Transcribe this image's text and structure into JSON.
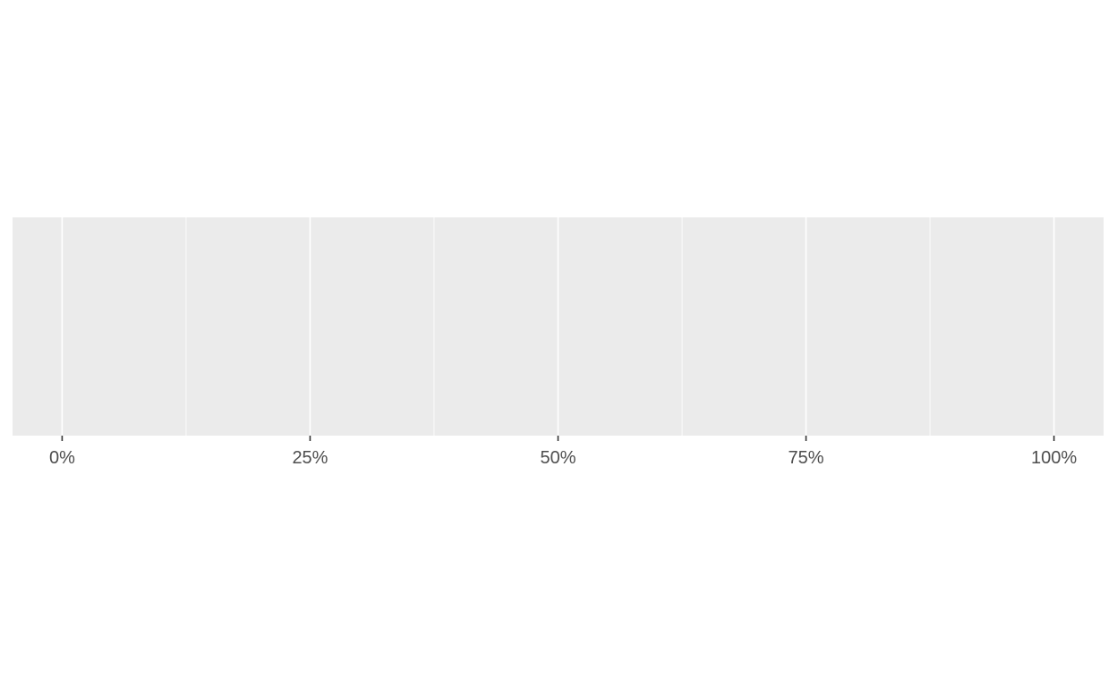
{
  "chart_data": {
    "type": "bar",
    "title": "",
    "xlabel": "",
    "ylabel": "",
    "x_range": [
      -0.05,
      1.05
    ],
    "major_breaks": [
      0,
      0.25,
      0.5,
      0.75,
      1
    ],
    "minor_breaks": [
      0.125,
      0.375,
      0.625,
      0.875
    ],
    "tick_labels": [
      "0%",
      "25%",
      "50%",
      "75%",
      "100%"
    ],
    "series": [],
    "grid": true,
    "legend": "none",
    "colors": {
      "panel_background": "#ebebeb",
      "grid_line": "#ffffff",
      "tick_mark": "#333333",
      "tick_label": "#4d4d4d",
      "page_background": "#ffffff"
    }
  }
}
